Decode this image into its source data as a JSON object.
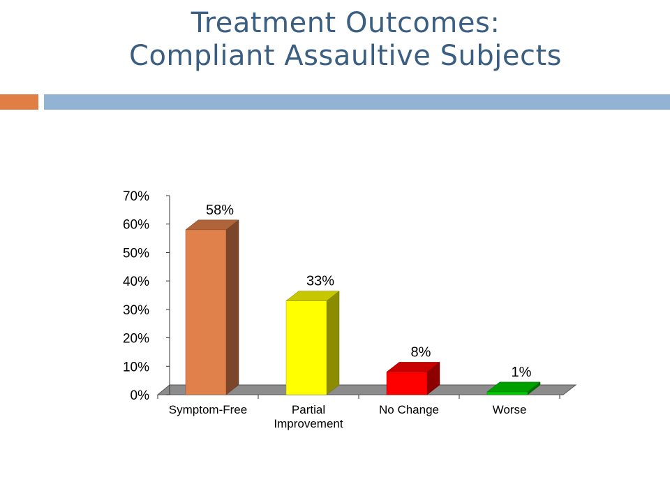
{
  "title": {
    "line1": "Treatment Outcomes:",
    "line2": "Compliant Assaultive Subjects"
  },
  "colors": {
    "title": "#3a5f82",
    "accent_orange": "#e07f45",
    "accent_blue": "#93b3d5",
    "floor": "#8c8c8c"
  },
  "chart_data": {
    "type": "bar",
    "categories": [
      "Symptom-Free",
      "Partial\nImprovement",
      "No Change",
      "Worse"
    ],
    "values": [
      58,
      33,
      8,
      1
    ],
    "data_labels": [
      "58%",
      "33%",
      "8%",
      "1%"
    ],
    "bar_colors": [
      "#e0804a",
      "#ffff00",
      "#ff0000",
      "#00cc00"
    ],
    "yticks": [
      "0%",
      "10%",
      "20%",
      "30%",
      "40%",
      "50%",
      "60%",
      "70%"
    ],
    "ylim": [
      0,
      70
    ],
    "xlabel": "",
    "ylabel": "",
    "grid": false,
    "style": "3d-column"
  }
}
